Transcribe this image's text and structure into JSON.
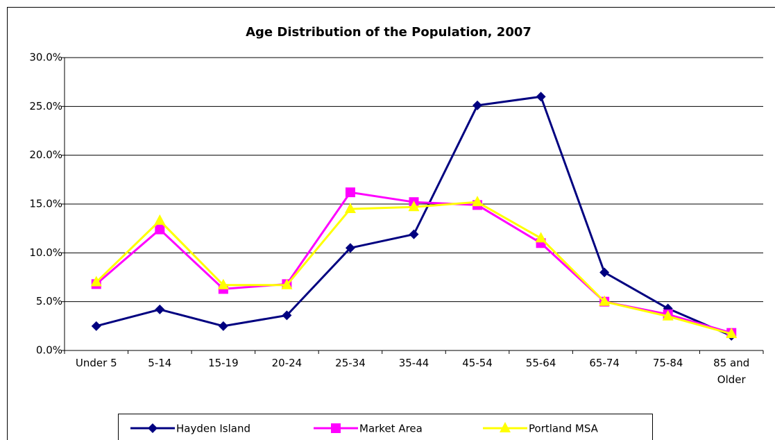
{
  "chart_data": {
    "type": "line",
    "title": "Age Distribution of the Population, 2007",
    "categories": [
      "Under 5",
      "5-14",
      "15-19",
      "20-24",
      "25-34",
      "35-44",
      "45-54",
      "55-64",
      "65-74",
      "75-84",
      "85 and Older"
    ],
    "series": [
      {
        "name": "Hayden Island",
        "color": "#000080",
        "marker": "diamond",
        "values": [
          2.5,
          4.2,
          2.5,
          3.6,
          10.5,
          11.9,
          25.1,
          26.0,
          8.0,
          4.3,
          1.5
        ]
      },
      {
        "name": "Market Area",
        "color": "#ff00ff",
        "marker": "square",
        "values": [
          6.8,
          12.4,
          6.3,
          6.8,
          16.2,
          15.2,
          14.9,
          11.0,
          5.0,
          3.7,
          1.8
        ]
      },
      {
        "name": "Portland MSA",
        "color": "#ffff00",
        "marker": "triangle",
        "values": [
          7.0,
          13.3,
          6.7,
          6.7,
          14.5,
          14.7,
          15.2,
          11.5,
          5.0,
          3.5,
          1.7
        ]
      }
    ],
    "ylim": [
      0,
      30
    ],
    "yticks": [
      {
        "value": 0,
        "label": "0.0%"
      },
      {
        "value": 5,
        "label": "5.0%"
      },
      {
        "value": 10,
        "label": "10.0%"
      },
      {
        "value": 15,
        "label": "15.0%"
      },
      {
        "value": 20,
        "label": "20.0%"
      },
      {
        "value": 25,
        "label": "25.0%"
      },
      {
        "value": 30,
        "label": "30.0%"
      }
    ],
    "grid": true,
    "legend": "bottom"
  }
}
